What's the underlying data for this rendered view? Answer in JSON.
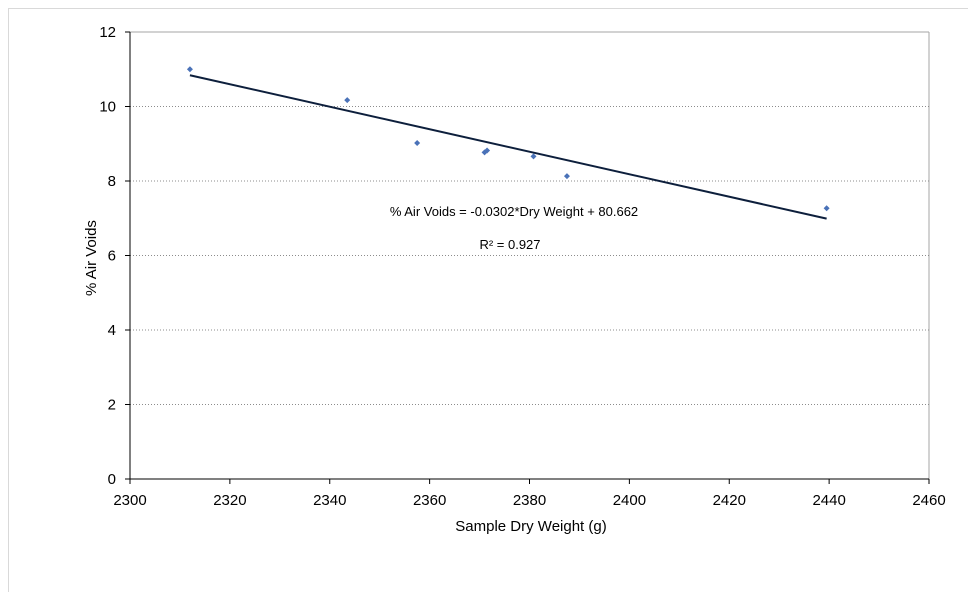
{
  "chart_data": {
    "type": "scatter",
    "title": "",
    "xlabel": "Sample Dry Weight (g)",
    "ylabel": "% Air Voids",
    "xlim": [
      2300,
      2460
    ],
    "ylim": [
      0,
      12
    ],
    "xticks": [
      2300,
      2320,
      2340,
      2360,
      2380,
      2400,
      2420,
      2440,
      2460
    ],
    "yticks": [
      0,
      2,
      4,
      6,
      8,
      10,
      12
    ],
    "grid": "horizontal",
    "legend": "none",
    "series": [
      {
        "marker": "diamond",
        "color": "#4a72b8",
        "points": [
          {
            "x": 2312.0,
            "y": 11.0
          },
          {
            "x": 2343.5,
            "y": 10.17
          },
          {
            "x": 2357.5,
            "y": 9.02
          },
          {
            "x": 2371.0,
            "y": 8.77
          },
          {
            "x": 2371.5,
            "y": 8.82
          },
          {
            "x": 2380.8,
            "y": 8.66
          },
          {
            "x": 2387.5,
            "y": 8.13
          },
          {
            "x": 2439.5,
            "y": 7.27
          }
        ]
      }
    ],
    "trendline": {
      "type": "linear",
      "slope": -0.0302,
      "intercept": 80.662,
      "x_range": [
        2312,
        2439.5
      ],
      "color": "#0d1f3c"
    },
    "annotations": {
      "equation": "% Air Voids = -0.0302*Dry  Weight + 80.662",
      "r_squared": "R² = 0.927"
    }
  }
}
